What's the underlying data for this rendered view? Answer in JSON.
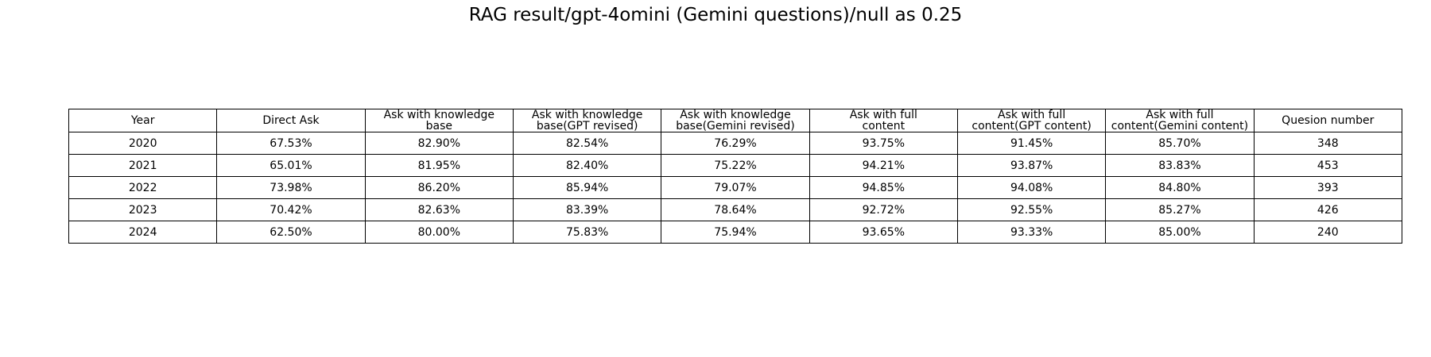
{
  "chart_data": {
    "type": "table",
    "title": "RAG result/gpt-4omini (Gemini questions)/null as 0.25",
    "columns": [
      "Year",
      "Direct Ask",
      "Ask with knowledge\nbase",
      "Ask with knowledge\nbase(GPT revised)",
      "Ask with knowledge\nbase(Gemini revised)",
      "Ask with full\ncontent",
      "Ask with full\ncontent(GPT content)",
      "Ask with full\ncontent(Gemini content)",
      "Quesion number"
    ],
    "rows": [
      [
        "2020",
        "67.53%",
        "82.90%",
        "82.54%",
        "76.29%",
        "93.75%",
        "91.45%",
        "85.70%",
        "348"
      ],
      [
        "2021",
        "65.01%",
        "81.95%",
        "82.40%",
        "75.22%",
        "94.21%",
        "93.87%",
        "83.83%",
        "453"
      ],
      [
        "2022",
        "73.98%",
        "86.20%",
        "85.94%",
        "79.07%",
        "94.85%",
        "94.08%",
        "84.80%",
        "393"
      ],
      [
        "2023",
        "70.42%",
        "82.63%",
        "83.39%",
        "78.64%",
        "92.72%",
        "92.55%",
        "85.27%",
        "426"
      ],
      [
        "2024",
        "62.50%",
        "80.00%",
        "75.83%",
        "75.94%",
        "93.65%",
        "93.33%",
        "85.00%",
        "240"
      ]
    ]
  }
}
